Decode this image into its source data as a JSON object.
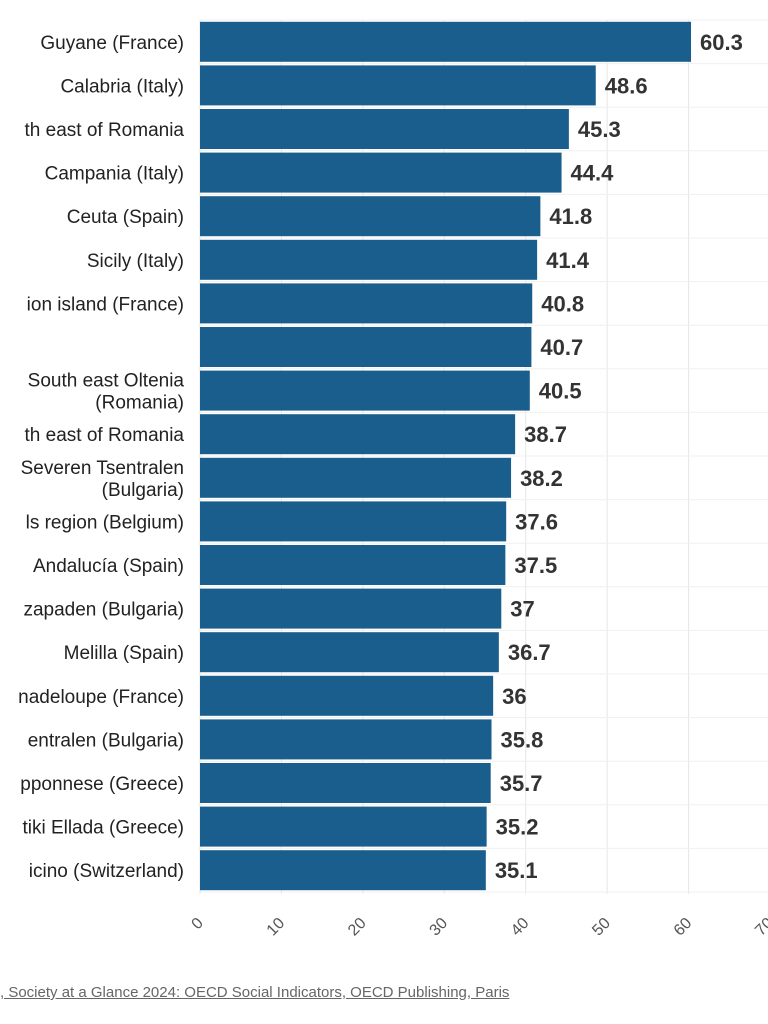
{
  "chart_data": {
    "type": "bar",
    "orientation": "horizontal",
    "categories": [
      "Guyane (France)",
      "Calabria (Italy)",
      "th east of Romania",
      "Campania (Italy)",
      "Ceuta (Spain)",
      "Sicily (Italy)",
      "ion island (France)",
      "",
      "South east Oltenia\n(Romania)",
      "th east of Romania",
      "Severen Tsentralen\n(Bulgaria)",
      "ls region (Belgium)",
      "Andalucía (Spain)",
      "zapaden (Bulgaria)",
      "Melilla (Spain)",
      "nadeloupe (France)",
      "entralen (Bulgaria)",
      "pponnese (Greece)",
      "tiki Ellada (Greece)",
      "icino (Switzerland)"
    ],
    "values": [
      60.3,
      48.6,
      45.3,
      44.4,
      41.8,
      41.4,
      40.8,
      40.7,
      40.5,
      38.7,
      38.2,
      37.6,
      37.5,
      37,
      36.7,
      36,
      35.8,
      35.7,
      35.2,
      35.1
    ],
    "value_labels": [
      "60.3",
      "48.6",
      "45.3",
      "44.4",
      "41.8",
      "41.4",
      "40.8",
      "40.7",
      "40.5",
      "38.7",
      "38.2",
      "37.6",
      "37.5",
      "37",
      "36.7",
      "36",
      "35.8",
      "35.7",
      "35.2",
      "35.1"
    ],
    "xlim": [
      0,
      70
    ],
    "x_ticks": [
      0,
      10,
      20,
      30,
      40,
      50,
      60,
      70
    ],
    "x_tick_labels": [
      "0",
      "10",
      "20",
      "30",
      "40",
      "50",
      "60",
      "70"
    ],
    "grid": true,
    "bar_color": "#1a5e8e",
    "grid_color": "#e6e6e6",
    "title": "",
    "xlabel": "",
    "ylabel": ""
  },
  "source": {
    "text": ", Society at a Glance 2024: OECD Social Indicators, OECD Publishing, Paris"
  }
}
